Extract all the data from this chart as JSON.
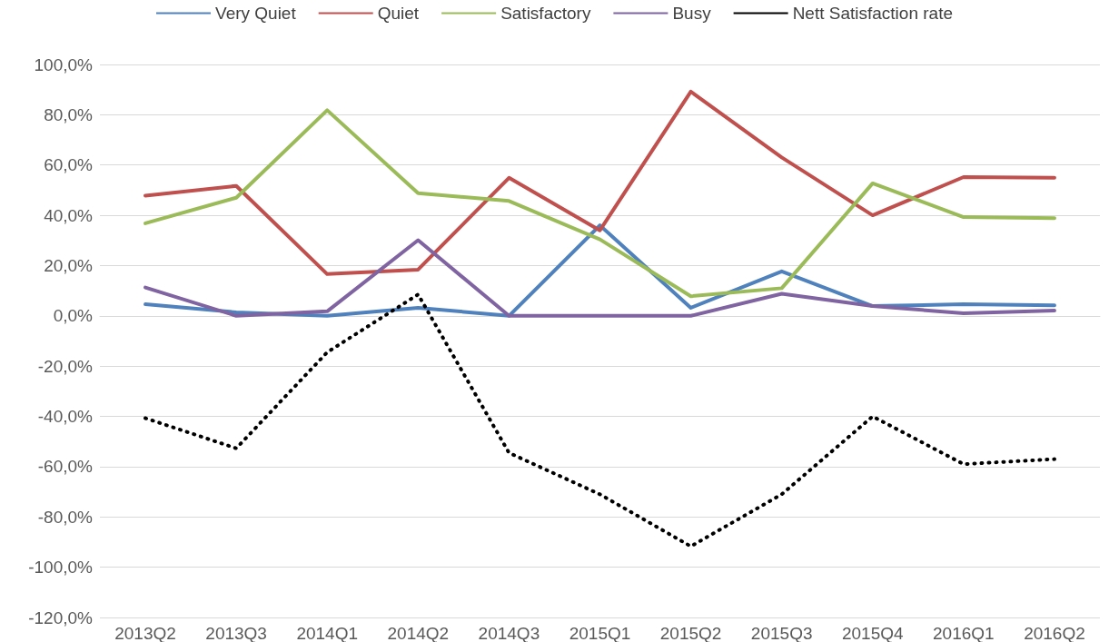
{
  "chart_data": {
    "type": "line",
    "categories": [
      "2013Q2",
      "2013Q3",
      "2014Q1",
      "2014Q2",
      "2014Q3",
      "2015Q1",
      "2015Q2",
      "2015Q3",
      "2015Q4",
      "2016Q1",
      "2016Q2"
    ],
    "series": [
      {
        "name": "Very Quiet",
        "color": "#4f81bd",
        "values": [
          4.6,
          1.4,
          0,
          3.2,
          0,
          36,
          3.2,
          17.7,
          3.9,
          4.6,
          4.2
        ]
      },
      {
        "name": "Quiet",
        "color": "#c0504d",
        "values": [
          47.8,
          51.7,
          16.6,
          18.4,
          54.9,
          34,
          89.2,
          63,
          40,
          55.2,
          54.9
        ]
      },
      {
        "name": "Satisfactory",
        "color": "#9bbb59",
        "values": [
          36.8,
          47,
          81.8,
          48.8,
          45.7,
          30.4,
          7.8,
          11,
          52.7,
          39.3,
          38.9
        ]
      },
      {
        "name": "Busy",
        "color": "#8064a2",
        "values": [
          11.3,
          0,
          1.8,
          30.1,
          0,
          0,
          0,
          8.8,
          3.9,
          1,
          2.1
        ]
      },
      {
        "name": "Nett Satisfaction rate",
        "color": "#000000",
        "line_style": "dotted",
        "values": [
          -40.7,
          -52.7,
          -14.5,
          8.5,
          -54.5,
          -71,
          -91.7,
          -71,
          -40,
          -59,
          -57
        ]
      }
    ],
    "ylim": [
      -120,
      100
    ],
    "yticks": [
      {
        "value": -120,
        "label": "-120,0%"
      },
      {
        "value": -100,
        "label": "-100,0%"
      },
      {
        "value": -80,
        "label": "-80,0%"
      },
      {
        "value": -60,
        "label": "-60,0%"
      },
      {
        "value": -40,
        "label": "-40,0%"
      },
      {
        "value": -20,
        "label": "-20,0%"
      },
      {
        "value": 0,
        "label": "0,0%"
      },
      {
        "value": 20,
        "label": "20,0%"
      },
      {
        "value": 40,
        "label": "40,0%"
      },
      {
        "value": 60,
        "label": "60,0%"
      },
      {
        "value": 80,
        "label": "80,0%"
      },
      {
        "value": 100,
        "label": "100,0%"
      }
    ],
    "grid": "y",
    "legend": "top",
    "marker": "none",
    "line_style": "solid"
  }
}
